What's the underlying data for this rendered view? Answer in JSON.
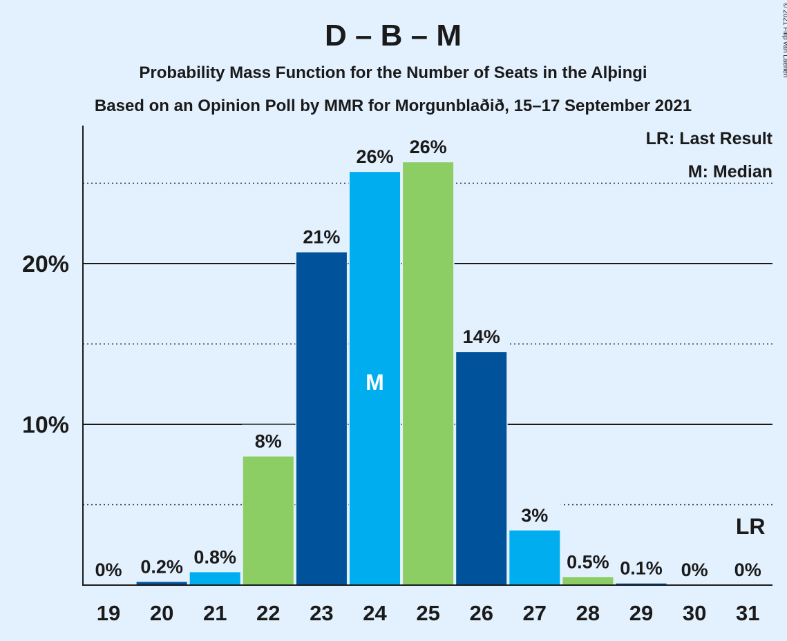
{
  "title": "D – B – M",
  "subtitle1": "Probability Mass Function for the Number of Seats in the Alþingi",
  "subtitle2": "Based on an Opinion Poll by MMR for Morgunblaðið, 15–17 September 2021",
  "copyright": "© 2021 Filip van Laenen",
  "legend": {
    "lr": "LR: Last Result",
    "m": "M: Median"
  },
  "markers": {
    "median_label": "M",
    "last_result_label": "LR"
  },
  "colors": {
    "background": "#e3f0fd",
    "dark_blue": "#00529b",
    "light_blue": "#00aeef",
    "green": "#8ccd64",
    "text": "#1a1a1a"
  },
  "chart_data": {
    "type": "bar",
    "categories": [
      "19",
      "20",
      "21",
      "22",
      "23",
      "24",
      "25",
      "26",
      "27",
      "28",
      "29",
      "30",
      "31"
    ],
    "values": [
      0,
      0.2,
      0.8,
      8.0,
      20.7,
      25.7,
      26.3,
      14.5,
      3.4,
      0.5,
      0.1,
      0,
      0
    ],
    "labels": [
      "0%",
      "0.2%",
      "0.8%",
      "8%",
      "21%",
      "26%",
      "26%",
      "14%",
      "3%",
      "0.5%",
      "0.1%",
      "0%",
      "0%"
    ],
    "bar_colors": [
      "dark_blue",
      "dark_blue",
      "light_blue",
      "green",
      "dark_blue",
      "light_blue",
      "green",
      "dark_blue",
      "light_blue",
      "green",
      "dark_blue",
      "light_blue",
      "green"
    ],
    "median_seat": "24",
    "last_result_seat": "31",
    "ylim": [
      0,
      28.5
    ],
    "yticks": [
      {
        "value": 10,
        "label": "10%"
      },
      {
        "value": 20,
        "label": "20%"
      }
    ],
    "minor_gridlines": [
      5,
      15,
      25
    ],
    "xlabel": "",
    "ylabel": ""
  }
}
